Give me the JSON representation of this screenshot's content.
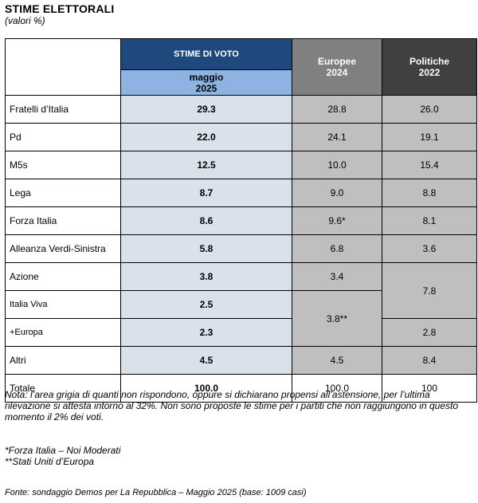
{
  "title": "STIME ELETTORALI",
  "subtitle": "(valori %)",
  "header": {
    "stime": "STIME DI VOTO",
    "maggio_line1": "maggio",
    "maggio_line2": "2025",
    "europee_line1": "Europee",
    "europee_line2": "2024",
    "politiche_line1": "Politiche",
    "politiche_line2": "2022"
  },
  "rows": [
    {
      "party": "Fratelli d’Italia",
      "stima": "29.3",
      "europee": "28.8",
      "politiche": "26.0"
    },
    {
      "party": "Pd",
      "stima": "22.0",
      "europee": "24.1",
      "politiche": "19.1"
    },
    {
      "party": "M5s",
      "stima": "12.5",
      "europee": "10.0",
      "politiche": "15.4"
    },
    {
      "party": "Lega",
      "stima": "8.7",
      "europee": "9.0",
      "politiche": "8.8"
    },
    {
      "party": "Forza Italia",
      "stima": "8.6",
      "europee": "9.6*",
      "politiche": "8.1"
    },
    {
      "party": "Alleanza Verdi-Sinistra",
      "stima": "5.8",
      "europee": "6.8",
      "politiche": "3.6"
    },
    {
      "party": "Azione",
      "stima": "3.8",
      "europee": "3.4",
      "politiche": "7.8"
    },
    {
      "party": "Italia Viva",
      "stima": "2.5",
      "europee": "3.8**",
      "politiche": ""
    },
    {
      "party": "+Europa",
      "stima": "2.3",
      "europee": "",
      "politiche": "2.8"
    },
    {
      "party": "Altri",
      "stima": "4.5",
      "europee": "4.5",
      "politiche": "8.4"
    },
    {
      "party": "Totale",
      "stima": "100.0",
      "europee": "100.0",
      "politiche": "100"
    }
  ],
  "note": "Nota: l’area grigia di quanti non rispondono, oppure si dichiarano propensi all’astensione, per l’ultima rilevazione si attesta intorno al 32%. Non sono proposte le stime per i partiti che non raggiungono in questo momento il 2% dei voti.",
  "footnote1": "*Forza Italia – Noi Moderati",
  "footnote2": "**Stati Uniti d’Europa",
  "source": "Fonte: sondaggio Demos per La Repubblica – Maggio 2025 (base: 1009 casi)"
}
